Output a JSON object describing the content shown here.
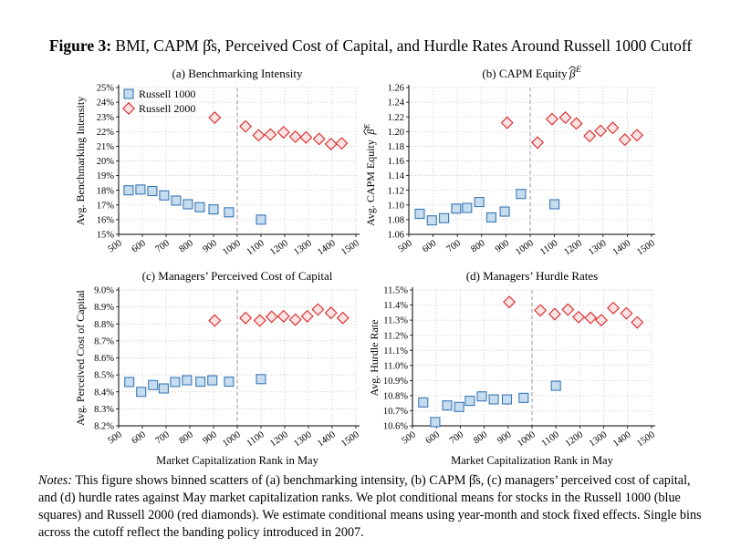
{
  "figure": {
    "label": "Figure 3:",
    "title": "BMI, CAPM β̂s, Perceived Cost of Capital, and Hurdle Rates Around Russell 1000 Cutoff"
  },
  "notes": {
    "label": "Notes:",
    "text": "This figure shows binned scatters of (a) benchmarking intensity, (b) CAPM β̂s, (c) managers’ perceived cost of capital, and (d) hurdle rates against May market capitalization ranks. We plot conditional means for stocks in the Russell 1000 (blue squares) and Russell 2000 (red diamonds). We estimate conditional means using year-month and stock fixed effects. Single bins across the cutoff reflect the banding policy introduced in 2007."
  },
  "colors": {
    "r1000_fill": "#c6dcef",
    "r1000_edge": "#3a78b5",
    "r2000_fill": "#fbe3e3",
    "r2000_edge": "#dc2626",
    "grid": "#bbbbbb",
    "cutoff": "#9a9a9a"
  },
  "chart_data": [
    {
      "type": "scatter",
      "title": "(a) Benchmarking Intensity",
      "xlabel": "",
      "ylabel": "Avg. Benchmarking Intensity",
      "xlim": [
        500,
        1500
      ],
      "ylim": [
        15,
        25
      ],
      "xticks": [
        "500",
        "600",
        "700",
        "800",
        "900",
        "1000",
        "1100",
        "1200",
        "1300",
        "1400",
        "1500"
      ],
      "yticks": [
        "15%",
        "16%",
        "17%",
        "18%",
        "19%",
        "20%",
        "21%",
        "22%",
        "23%",
        "24%",
        "25%"
      ],
      "cutoff": 1000,
      "legend": [
        "Russell 1000",
        "Russell 2000"
      ],
      "legend_position": "top-left",
      "series": [
        {
          "name": "Russell 1000",
          "marker": "square",
          "x": [
            542,
            592,
            642,
            692,
            742,
            792,
            842,
            900,
            965,
            1100
          ],
          "y": [
            18.0,
            18.05,
            17.95,
            17.65,
            17.3,
            17.05,
            16.85,
            16.7,
            16.5,
            16.0
          ]
        },
        {
          "name": "Russell 2000",
          "marker": "diamond",
          "x": [
            905,
            1035,
            1090,
            1140,
            1195,
            1245,
            1290,
            1345,
            1395,
            1440
          ],
          "y": [
            22.95,
            22.35,
            21.75,
            21.8,
            21.95,
            21.65,
            21.6,
            21.5,
            21.15,
            21.2
          ]
        }
      ]
    },
    {
      "type": "scatter",
      "title": "(b) CAPM Equity β̂^E",
      "xlabel": "",
      "ylabel": "Avg. CAPM Equity β̂^E",
      "xlim": [
        500,
        1500
      ],
      "ylim": [
        1.06,
        1.26
      ],
      "xticks": [
        "500",
        "600",
        "700",
        "800",
        "900",
        "1000",
        "1100",
        "1200",
        "1300",
        "1400",
        "1500"
      ],
      "yticks": [
        "1.06",
        "1.08",
        "1.10",
        "1.12",
        "1.14",
        "1.16",
        "1.18",
        "1.20",
        "1.22",
        "1.24",
        "1.26"
      ],
      "cutoff": 1000,
      "series": [
        {
          "name": "Russell 1000",
          "marker": "square",
          "x": [
            545,
            595,
            645,
            695,
            740,
            790,
            840,
            895,
            962,
            1100
          ],
          "y": [
            1.088,
            1.079,
            1.082,
            1.095,
            1.096,
            1.104,
            1.083,
            1.091,
            1.115,
            1.101
          ]
        },
        {
          "name": "Russell 2000",
          "marker": "diamond",
          "x": [
            905,
            1030,
            1090,
            1145,
            1190,
            1245,
            1290,
            1340,
            1390,
            1440
          ],
          "y": [
            1.212,
            1.185,
            1.217,
            1.219,
            1.211,
            1.194,
            1.201,
            1.205,
            1.189,
            1.195
          ]
        }
      ]
    },
    {
      "type": "scatter",
      "title": "(c) Managers’ Perceived Cost of Capital",
      "xlabel": "Market Capitalization Rank in May",
      "ylabel": "Avg. Perceived Cost of Capital",
      "xlim": [
        500,
        1500
      ],
      "ylim": [
        8.2,
        9.0
      ],
      "xticks": [
        "500",
        "600",
        "700",
        "800",
        "900",
        "1000",
        "1100",
        "1200",
        "1300",
        "1400",
        "1500"
      ],
      "yticks": [
        "8.2%",
        "8.3%",
        "8.4%",
        "8.5%",
        "8.6%",
        "8.7%",
        "8.8%",
        "8.9%",
        "9.0%"
      ],
      "cutoff": 1000,
      "series": [
        {
          "name": "Russell 1000",
          "marker": "square",
          "x": [
            545,
            595,
            645,
            690,
            738,
            788,
            845,
            895,
            965,
            1100
          ],
          "y": [
            8.458,
            8.4,
            8.44,
            8.42,
            8.458,
            8.468,
            8.46,
            8.468,
            8.46,
            8.475
          ]
        },
        {
          "name": "Russell 2000",
          "marker": "diamond",
          "x": [
            905,
            1035,
            1095,
            1145,
            1195,
            1245,
            1295,
            1340,
            1395,
            1445
          ],
          "y": [
            8.82,
            8.835,
            8.82,
            8.842,
            8.845,
            8.825,
            8.845,
            8.885,
            8.865,
            8.835
          ]
        }
      ]
    },
    {
      "type": "scatter",
      "title": "(d) Managers’ Hurdle Rates",
      "xlabel": "Market Capitalization Rank in May",
      "ylabel": "Avg. Hurdle Rate",
      "xlim": [
        500,
        1500
      ],
      "ylim": [
        10.6,
        11.5
      ],
      "xticks": [
        "500",
        "600",
        "700",
        "800",
        "900",
        "1000",
        "1100",
        "1200",
        "1300",
        "1400",
        "1500"
      ],
      "yticks": [
        "10.6%",
        "10.7%",
        "10.8%",
        "10.9%",
        "11.0%",
        "11.1%",
        "11.2%",
        "11.3%",
        "11.4%",
        "11.5%"
      ],
      "cutoff": 1000,
      "series": [
        {
          "name": "Russell 1000",
          "marker": "square",
          "x": [
            545,
            595,
            645,
            695,
            740,
            790,
            840,
            895,
            965,
            1100
          ],
          "y": [
            10.755,
            10.625,
            10.735,
            10.725,
            10.765,
            10.795,
            10.775,
            10.775,
            10.785,
            10.865
          ]
        },
        {
          "name": "Russell 2000",
          "marker": "diamond",
          "x": [
            905,
            1035,
            1095,
            1150,
            1195,
            1245,
            1290,
            1340,
            1395,
            1440
          ],
          "y": [
            11.42,
            11.365,
            11.34,
            11.37,
            11.32,
            11.315,
            11.3,
            11.38,
            11.345,
            11.285
          ]
        }
      ]
    }
  ]
}
